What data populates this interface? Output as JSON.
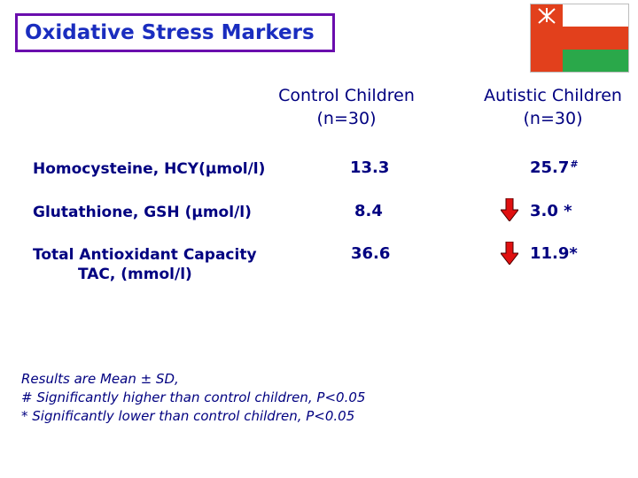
{
  "title": "Oxidative Stress Markers",
  "flag_icon": "oman-flag-icon",
  "columns": {
    "control": [
      "Control Children",
      "(n=30)"
    ],
    "autistic": [
      "Autistic Children",
      "(n=30)"
    ]
  },
  "rows": [
    {
      "label": [
        "Homocysteine, HCY(µmol/l)"
      ],
      "control": "13.3",
      "autistic": "25.7",
      "autistic_mark": "#",
      "arrow": ""
    },
    {
      "label": [
        "Glutathione, GSH (µmol/l)"
      ],
      "control": "8.4",
      "autistic": "3.0 *",
      "autistic_mark": "",
      "arrow": "down-arrow-icon"
    },
    {
      "label": [
        "Total Antioxidant Capacity",
        "TAC, (mmol/l)"
      ],
      "control": "36.6",
      "autistic": "11.9*",
      "autistic_mark": "",
      "arrow": "down-arrow-icon"
    }
  ],
  "notes": [
    "Results are Mean ± SD,",
    "# Significantly higher than control children, P<0.05",
    "* Significantly lower than control children, P<0.05"
  ],
  "colors": {
    "text": "#000080",
    "title": "#1a2dbf",
    "title_border": "#6a0dad",
    "arrow": "#e01010",
    "flag_red": "#e2401c",
    "flag_green": "#2aa84a"
  }
}
